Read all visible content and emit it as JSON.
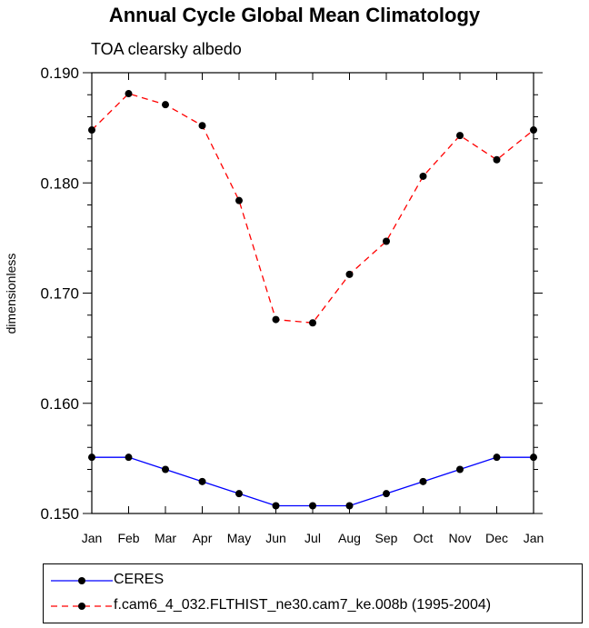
{
  "title": "Annual Cycle Global Mean Climatology",
  "subtitle": "TOA clearsky albedo",
  "chart_data": {
    "type": "line",
    "title": "Annual Cycle Global Mean Climatology",
    "subtitle": "TOA clearsky albedo",
    "xlabel": "",
    "ylabel": "dimensionless",
    "categories": [
      "Jan",
      "Feb",
      "Mar",
      "Apr",
      "May",
      "Jun",
      "Jul",
      "Aug",
      "Sep",
      "Oct",
      "Nov",
      "Dec",
      "Jan"
    ],
    "ylim": [
      0.15,
      0.19
    ],
    "yticks": [
      "0.150",
      "0.160",
      "0.170",
      "0.180",
      "0.190"
    ],
    "grid": false,
    "legend_position": "bottom",
    "series": [
      {
        "name": "CERES",
        "color": "#0000ff",
        "style": "solid",
        "values": [
          0.1551,
          0.1551,
          0.154,
          0.1529,
          0.1518,
          0.1507,
          0.1507,
          0.1507,
          0.1518,
          0.1529,
          0.154,
          0.1551,
          0.1551
        ]
      },
      {
        "name": "f.cam6_4_032.FLTHIST_ne30.cam7_ke.008b (1995-2004)",
        "color": "#ff0000",
        "style": "dashed",
        "values": [
          0.1848,
          0.1881,
          0.1871,
          0.1852,
          0.1784,
          0.1676,
          0.1673,
          0.1717,
          0.1747,
          0.1806,
          0.1843,
          0.1821,
          0.1848
        ]
      }
    ]
  }
}
